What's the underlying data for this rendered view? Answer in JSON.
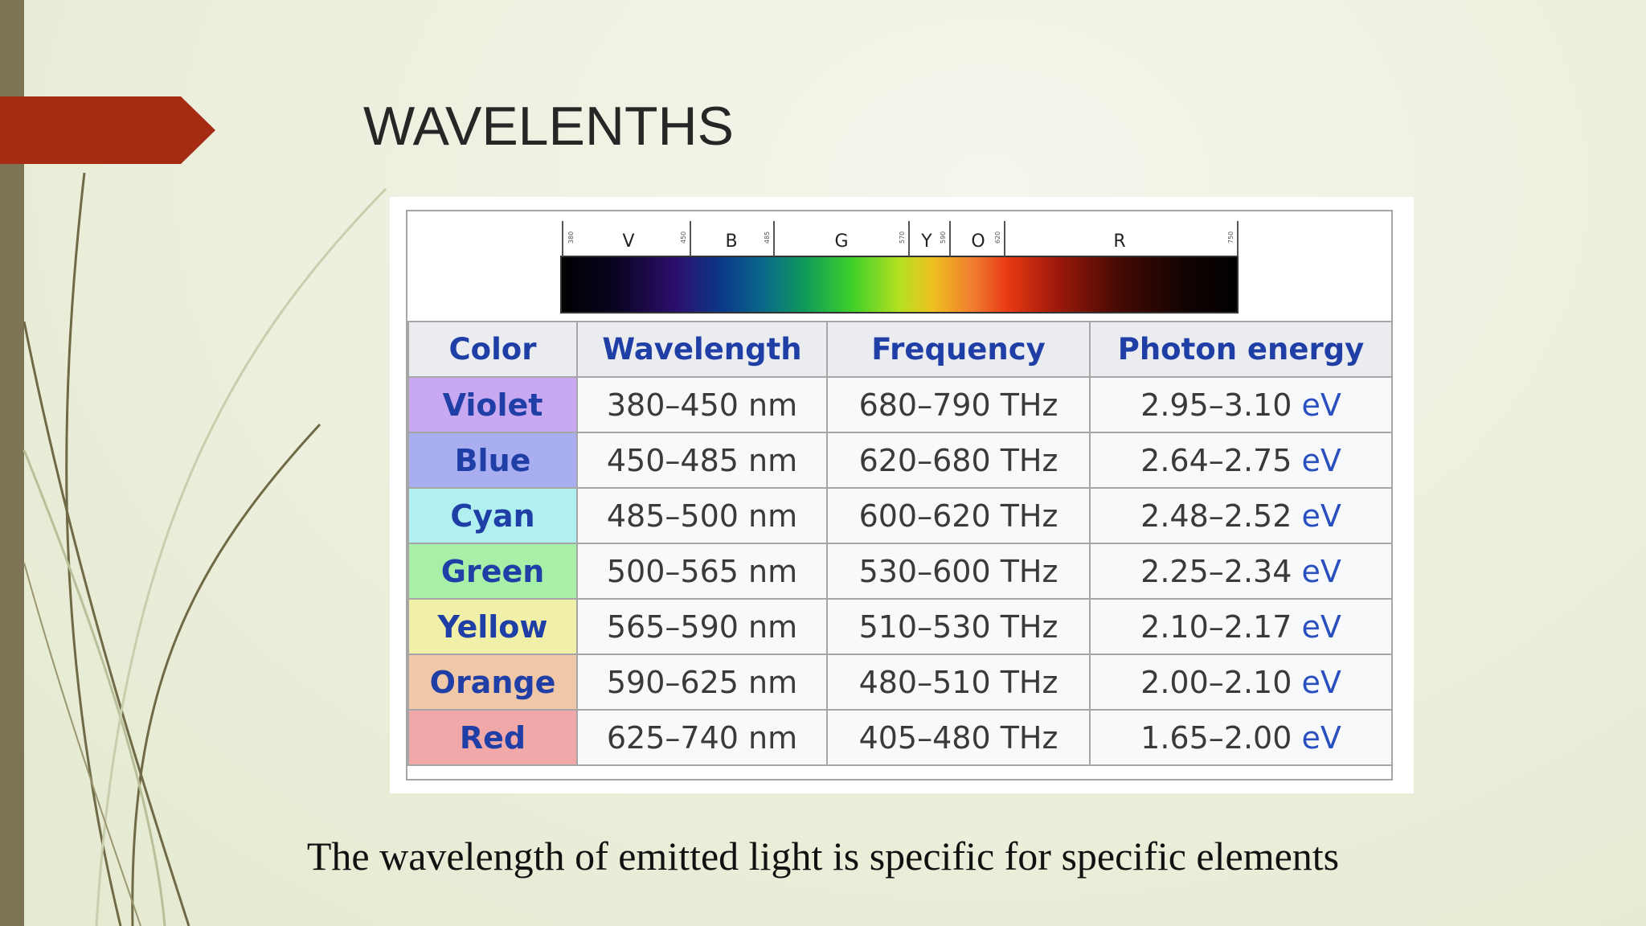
{
  "slide": {
    "title": "WAVELENTHS",
    "caption": "The wavelength of emitted light is specific for specific elements"
  },
  "spectrum": {
    "band_letters": [
      "V",
      "B",
      "G",
      "Y",
      "O",
      "R"
    ],
    "tick_labels": [
      "380",
      "450",
      "485",
      "570",
      "590",
      "620",
      "750"
    ]
  },
  "table": {
    "headers": [
      "Color",
      "Wavelength",
      "Frequency",
      "Photon energy"
    ],
    "rows": [
      {
        "color": "Violet",
        "wavelength": "380–450 nm",
        "frequency": "680–790 THz",
        "energy": "2.95–3.10",
        "energy_unit": "eV",
        "bg": "#c8a8f0"
      },
      {
        "color": "Blue",
        "wavelength": "450–485 nm",
        "frequency": "620–680 THz",
        "energy": "2.64–2.75",
        "energy_unit": "eV",
        "bg": "#a8aef0"
      },
      {
        "color": "Cyan",
        "wavelength": "485–500 nm",
        "frequency": "600–620 THz",
        "energy": "2.48–2.52",
        "energy_unit": "eV",
        "bg": "#b0f0f0"
      },
      {
        "color": "Green",
        "wavelength": "500–565 nm",
        "frequency": "530–600 THz",
        "energy": "2.25–2.34",
        "energy_unit": "eV",
        "bg": "#a8f0a8"
      },
      {
        "color": "Yellow",
        "wavelength": "565–590 nm",
        "frequency": "510–530 THz",
        "energy": "2.10–2.17",
        "energy_unit": "eV",
        "bg": "#f0f0a8"
      },
      {
        "color": "Orange",
        "wavelength": "590–625 nm",
        "frequency": "480–510 THz",
        "energy": "2.00–2.10",
        "energy_unit": "eV",
        "bg": "#f0c8a8"
      },
      {
        "color": "Red",
        "wavelength": "625–740 nm",
        "frequency": "405–480 THz",
        "energy": "1.65–2.00",
        "energy_unit": "eV",
        "bg": "#f0a8a8"
      }
    ]
  },
  "colors": {
    "accent_arrow": "#a52c12",
    "left_bar": "#7c7454",
    "header_text": "#1f3fa6"
  }
}
